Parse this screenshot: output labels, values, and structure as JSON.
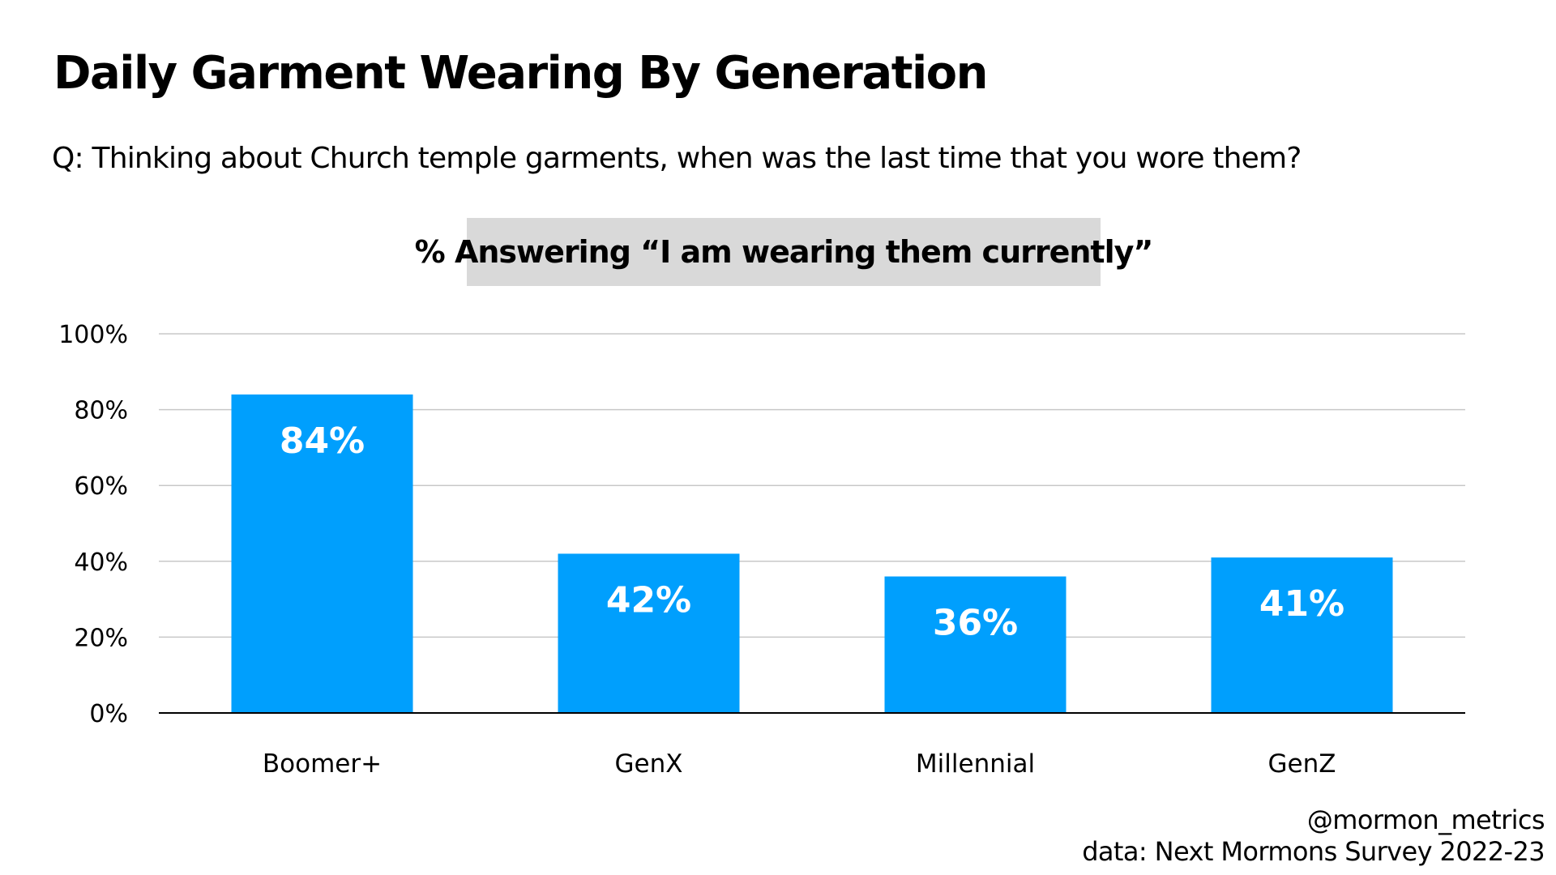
{
  "title": "Daily Garment Wearing By Generation",
  "question": "Q: Thinking about Church temple garments, when was the last time that you wore them?",
  "chart_label": "% Answering “I am wearing them currently”",
  "credits": {
    "handle": "@mormon_metrics",
    "source": "data: Next Mormons Survey 2022-23"
  },
  "colors": {
    "bar": "#009ffd",
    "grid": "#c8c8c8",
    "axis": "#000000",
    "label_box": "#d9d9d9"
  },
  "chart_data": {
    "type": "bar",
    "categories": [
      "Boomer+",
      "GenX",
      "Millennial",
      "GenZ"
    ],
    "values": [
      84,
      42,
      36,
      41
    ],
    "data_labels": [
      "84%",
      "42%",
      "36%",
      "41%"
    ],
    "ylim": [
      0,
      100
    ],
    "yticks": [
      0,
      20,
      40,
      60,
      80,
      100
    ],
    "ytick_labels": [
      "0%",
      "20%",
      "40%",
      "60%",
      "80%",
      "100%"
    ],
    "grid": true,
    "legend": "none"
  }
}
